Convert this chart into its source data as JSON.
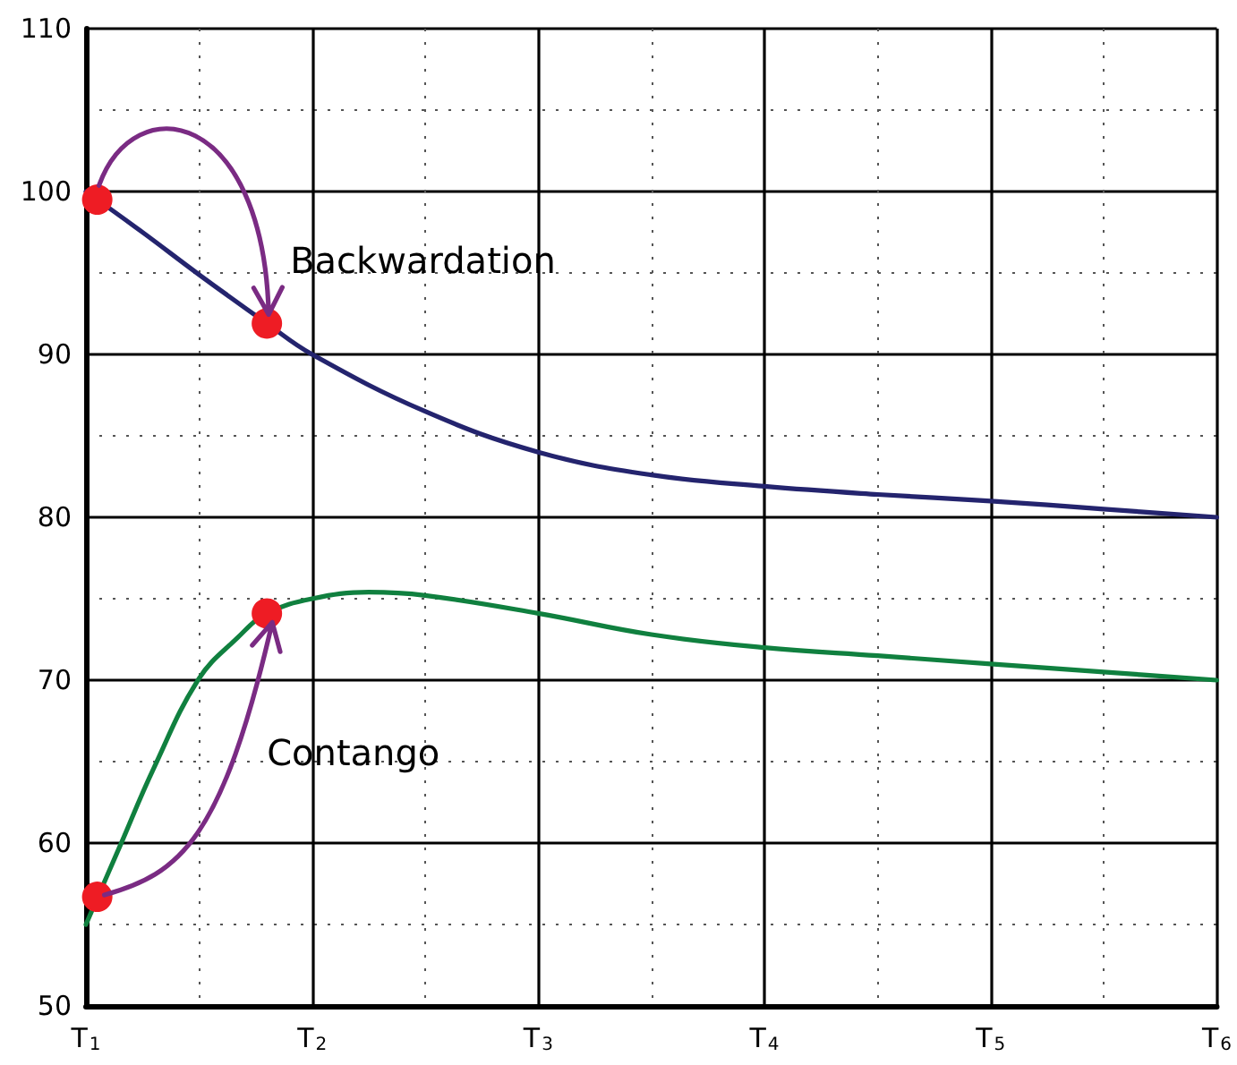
{
  "chart_data": {
    "type": "line",
    "xlim": [
      1,
      6
    ],
    "xticks": [
      {
        "value": 1,
        "label": "T$_{1}$"
      },
      {
        "value": 2,
        "label": "T$_{2}$"
      },
      {
        "value": 3,
        "label": "T$_{3}$"
      },
      {
        "value": 4,
        "label": "T$_{4}$"
      },
      {
        "value": 5,
        "label": "T$_{5}$"
      },
      {
        "value": 6,
        "label": "T$_{6}$"
      }
    ],
    "ylim": [
      50,
      110
    ],
    "yticks": [
      50,
      60,
      70,
      80,
      90,
      100,
      110
    ],
    "grid": true,
    "series": [
      {
        "name": "Backwardation",
        "color": "#24246e",
        "x": [
          1,
          1.25,
          1.5,
          1.8,
          2,
          2.5,
          3,
          3.5,
          4,
          4.5,
          5,
          5.5,
          6
        ],
        "values": [
          100,
          97.5,
          94.9,
          91.9,
          90,
          86.5,
          84,
          82.6,
          81.9,
          81.4,
          81,
          80.5,
          80
        ]
      },
      {
        "name": "Contango",
        "color": "#10803f",
        "x": [
          1,
          1.15,
          1.3,
          1.5,
          1.67,
          1.8,
          2,
          2.25,
          2.5,
          3,
          3.5,
          4,
          4.5,
          5,
          5.5,
          6
        ],
        "values": [
          55,
          59.8,
          64.6,
          70.1,
          72.6,
          74.1,
          75,
          75.4,
          75.2,
          74.1,
          72.8,
          72,
          71.5,
          71,
          70.5,
          70
        ]
      },
      {
        "type": "scatter",
        "color": "#ee1c24",
        "marker": "circle",
        "x": [
          1.05,
          1.8,
          1.05,
          1.8
        ],
        "values": [
          99.5,
          91.9,
          56.7,
          74.1
        ]
      }
    ]
  }
}
